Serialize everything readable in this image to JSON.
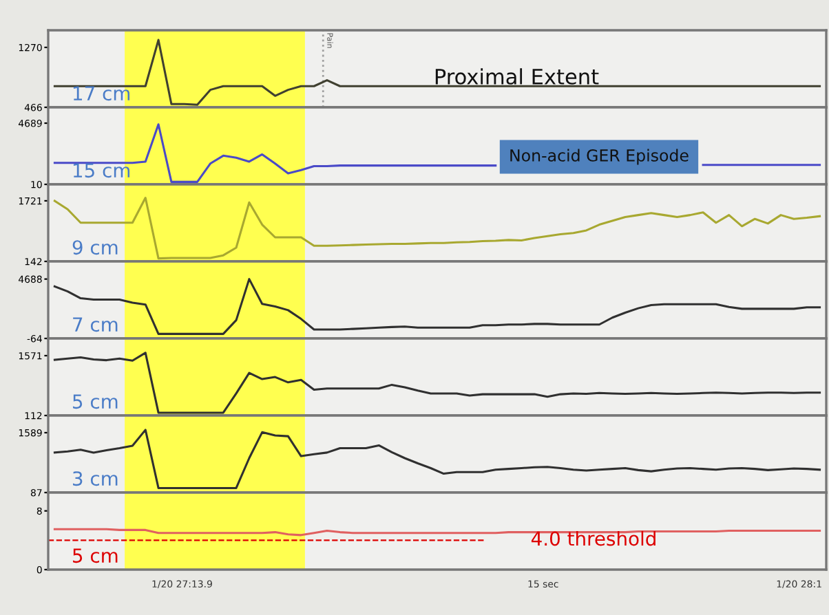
{
  "chart_data": [
    {
      "type": "line",
      "ylabel": "17 cm",
      "annotations": [
        "Proximal Extent",
        "Pain"
      ],
      "categories": [
        null,
        null,
        null,
        null,
        null,
        null,
        null,
        null,
        null,
        null,
        null,
        null,
        null,
        null,
        null,
        null,
        null,
        null,
        null,
        null,
        null,
        null,
        null,
        null,
        null,
        null,
        null,
        null,
        null,
        null,
        null,
        null,
        null,
        null,
        null,
        null,
        null,
        null,
        null,
        null,
        null,
        null,
        null,
        null,
        null,
        null,
        null,
        null,
        null,
        null,
        null,
        null,
        null,
        null,
        null,
        null,
        null,
        null,
        null,
        null
      ],
      "ylim": [
        466,
        1500
      ],
      "yticks": [
        466,
        1270
      ],
      "tick_labels": "y",
      "series": [
        {
          "color": "#404030",
          "values": [
            750,
            750,
            750,
            750,
            750,
            750,
            750,
            750,
            1370,
            510,
            510,
            500,
            700,
            750,
            750,
            750,
            750,
            620,
            700,
            750,
            750,
            830,
            750,
            750,
            750,
            750,
            750,
            750,
            750,
            750,
            750,
            750,
            750,
            750,
            750,
            750,
            750,
            750,
            750,
            750,
            750,
            750,
            750,
            750,
            750,
            750,
            750,
            750,
            750,
            750,
            750,
            750,
            750,
            750,
            750,
            750,
            750,
            750,
            750,
            750
          ]
        }
      ]
    },
    {
      "type": "line",
      "ylabel": "15 cm",
      "annotations": [
        "Non-acid GER Episode"
      ],
      "categories": [
        null,
        null,
        null,
        null,
        null,
        null,
        null,
        null,
        null,
        null,
        null,
        null,
        null,
        null,
        null,
        null,
        null,
        null,
        null,
        null,
        null,
        null,
        null,
        null,
        null,
        null,
        null,
        null,
        null,
        null,
        null,
        null,
        null,
        null,
        null,
        null,
        null,
        null,
        null,
        null,
        null,
        null,
        null,
        null,
        null,
        null,
        null,
        null,
        null,
        null,
        null,
        null,
        null,
        null,
        null,
        null,
        null,
        null,
        null,
        null
      ],
      "ylim": [
        10,
        5900
      ],
      "yticks": [
        10,
        4689
      ],
      "tick_labels": "y",
      "series": [
        {
          "color": "#4a4ac8",
          "values": [
            1650,
            1650,
            1650,
            1650,
            1650,
            1650,
            1650,
            1750,
            4600,
            200,
            200,
            200,
            1600,
            2200,
            2050,
            1750,
            2300,
            1600,
            850,
            1100,
            1400,
            1400,
            1450,
            1450,
            1450,
            1450,
            1450,
            1450,
            1450,
            1450,
            1450,
            1450,
            1450,
            1450,
            1450,
            null,
            null,
            null,
            null,
            null,
            null,
            null,
            null,
            null,
            null,
            null,
            null,
            null,
            null,
            null,
            1500,
            1500,
            1500,
            1500,
            1500,
            1500,
            1500,
            1500,
            1500,
            1500
          ]
        }
      ]
    },
    {
      "type": "line",
      "ylabel": "9 cm",
      "categories": [
        null,
        null,
        null,
        null,
        null,
        null,
        null,
        null,
        null,
        null,
        null,
        null,
        null,
        null,
        null,
        null,
        null,
        null,
        null,
        null,
        null,
        null,
        null,
        null,
        null,
        null,
        null,
        null,
        null,
        null,
        null,
        null,
        null,
        null,
        null,
        null,
        null,
        null,
        null,
        null,
        null,
        null,
        null,
        null,
        null,
        null,
        null,
        null,
        null,
        null,
        null,
        null,
        null,
        null,
        null,
        null,
        null,
        null,
        null,
        null
      ],
      "ylim": [
        142,
        2150
      ],
      "yticks": [
        142,
        1721
      ],
      "tick_labels": "y",
      "series": [
        {
          "color": "#a8a830",
          "values": [
            1720,
            1500,
            1150,
            1150,
            1150,
            1150,
            1150,
            1800,
            220,
            230,
            230,
            230,
            230,
            300,
            500,
            1680,
            1100,
            770,
            770,
            770,
            550,
            550,
            560,
            570,
            580,
            590,
            600,
            600,
            610,
            620,
            620,
            640,
            650,
            670,
            680,
            700,
            690,
            750,
            800,
            850,
            880,
            950,
            1100,
            1200,
            1300,
            1350,
            1400,
            1350,
            1300,
            1350,
            1420,
            1150,
            1350,
            1060,
            1250,
            1130,
            1350,
            1250,
            1280,
            1320
          ]
        }
      ]
    },
    {
      "type": "line",
      "ylabel": "7 cm",
      "categories": [
        null,
        null,
        null,
        null,
        null,
        null,
        null,
        null,
        null,
        null,
        null,
        null,
        null,
        null,
        null,
        null,
        null,
        null,
        null,
        null,
        null,
        null,
        null,
        null,
        null,
        null,
        null,
        null,
        null,
        null,
        null,
        null,
        null,
        null,
        null,
        null,
        null,
        null,
        null,
        null,
        null,
        null,
        null,
        null,
        null,
        null,
        null,
        null,
        null,
        null,
        null,
        null,
        null,
        null,
        null,
        null,
        null,
        null,
        null,
        null
      ],
      "ylim": [
        -64,
        6100
      ],
      "yticks": [
        -64,
        4688
      ],
      "tick_labels": "y",
      "series": [
        {
          "color": "#303030",
          "values": [
            4100,
            3700,
            3150,
            3050,
            3050,
            3050,
            2800,
            2650,
            300,
            300,
            300,
            300,
            300,
            300,
            1400,
            4690,
            2700,
            2500,
            2200,
            1500,
            650,
            650,
            650,
            700,
            750,
            800,
            850,
            880,
            800,
            800,
            800,
            800,
            800,
            1000,
            1000,
            1050,
            1050,
            1100,
            1100,
            1050,
            1050,
            1050,
            1050,
            1600,
            2000,
            2350,
            2600,
            2670,
            2670,
            2670,
            2670,
            2670,
            2450,
            2310,
            2310,
            2310,
            2310,
            2310,
            2430,
            2430
          ]
        }
      ]
    },
    {
      "type": "line",
      "ylabel": "5 cm",
      "categories": [
        null,
        null,
        null,
        null,
        null,
        null,
        null,
        null,
        null,
        null,
        null,
        null,
        null,
        null,
        null,
        null,
        null,
        null,
        null,
        null,
        null,
        null,
        null,
        null,
        null,
        null,
        null,
        null,
        null,
        null,
        null,
        null,
        null,
        null,
        null,
        null,
        null,
        null,
        null,
        null,
        null,
        null,
        null,
        null,
        null,
        null,
        null,
        null,
        null,
        null,
        null,
        null,
        null,
        null,
        null,
        null,
        null,
        null,
        null,
        null
      ],
      "ylim": [
        112,
        1990
      ],
      "yticks": [
        112,
        1571
      ],
      "tick_labels": "y",
      "series": [
        {
          "color": "#303030",
          "values": [
            1470,
            1500,
            1530,
            1480,
            1460,
            1500,
            1450,
            1640,
            180,
            180,
            180,
            180,
            180,
            180,
            650,
            1150,
            1000,
            1050,
            920,
            980,
            740,
            770,
            770,
            770,
            770,
            770,
            860,
            800,
            720,
            650,
            650,
            650,
            600,
            630,
            630,
            630,
            630,
            630,
            570,
            630,
            650,
            640,
            660,
            650,
            640,
            650,
            660,
            650,
            640,
            650,
            660,
            670,
            660,
            650,
            660,
            670,
            670,
            660,
            670,
            670
          ]
        }
      ]
    },
    {
      "type": "line",
      "ylabel": "3 cm",
      "categories": [
        null,
        null,
        null,
        null,
        null,
        null,
        null,
        null,
        null,
        null,
        null,
        null,
        null,
        null,
        null,
        null,
        null,
        null,
        null,
        null,
        null,
        null,
        null,
        null,
        null,
        null,
        null,
        null,
        null,
        null,
        null,
        null,
        null,
        null,
        null,
        null,
        null,
        null,
        null,
        null,
        null,
        null,
        null,
        null,
        null,
        null,
        null,
        null,
        null,
        null,
        null,
        null,
        null,
        null,
        null,
        null,
        null,
        null,
        null,
        null
      ],
      "ylim": [
        87,
        2020
      ],
      "yticks": [
        87,
        1589
      ],
      "tick_labels": "y",
      "series": [
        {
          "color": "#303030",
          "values": [
            1090,
            1120,
            1160,
            1090,
            1150,
            1200,
            1260,
            1660,
            200,
            200,
            200,
            200,
            200,
            200,
            200,
            950,
            1600,
            1520,
            1500,
            1000,
            1050,
            1090,
            1200,
            1200,
            1200,
            1270,
            1100,
            950,
            820,
            700,
            560,
            600,
            600,
            600,
            660,
            680,
            700,
            720,
            730,
            700,
            660,
            640,
            660,
            680,
            700,
            650,
            620,
            660,
            690,
            700,
            680,
            660,
            690,
            700,
            680,
            650,
            670,
            690,
            680,
            660
          ]
        }
      ]
    },
    {
      "type": "line",
      "ylabel": "5 cm",
      "annotations": [
        "1/20 27:13.9",
        "15 sec",
        "1/20 28:1"
      ],
      "categories": [
        null,
        null,
        null,
        null,
        null,
        null,
        null,
        null,
        null,
        null,
        null,
        null,
        null,
        null,
        null,
        null,
        null,
        null,
        null,
        null,
        null,
        null,
        null,
        null,
        null,
        null,
        null,
        null,
        null,
        null,
        null,
        null,
        null,
        null,
        null,
        null,
        null,
        null,
        null,
        null,
        null,
        null,
        null,
        null,
        null,
        null,
        null,
        null,
        null,
        null,
        null,
        null,
        null,
        null,
        null,
        null,
        null,
        null,
        null,
        null
      ],
      "ylim": [
        0,
        10.5
      ],
      "yticks": [
        0,
        8
      ],
      "tick_labels": "y",
      "ref_lines": [
        {
          "axis": "y",
          "value": 4.0,
          "label": "4.0 threshold",
          "color": "#dd0000",
          "line_style": "dashed"
        }
      ],
      "series": [
        {
          "color": "#e06060",
          "values": [
            5.5,
            5.5,
            5.5,
            5.5,
            5.5,
            5.4,
            5.4,
            5.4,
            5.0,
            5.0,
            5.0,
            5.0,
            5.0,
            5.0,
            5.0,
            5.0,
            5.0,
            5.1,
            4.8,
            4.7,
            5.0,
            5.3,
            5.1,
            5.0,
            5.0,
            5.0,
            5.0,
            5.0,
            5.0,
            5.0,
            5.0,
            5.0,
            5.0,
            5.0,
            5.0,
            5.1,
            5.1,
            5.1,
            5.1,
            5.1,
            5.1,
            5.1,
            5.1,
            5.1,
            5.1,
            5.2,
            5.2,
            5.2,
            5.2,
            5.2,
            5.2,
            5.2,
            5.3,
            5.3,
            5.3,
            5.3,
            5.3,
            5.3,
            5.3,
            5.3
          ]
        }
      ]
    }
  ]
}
